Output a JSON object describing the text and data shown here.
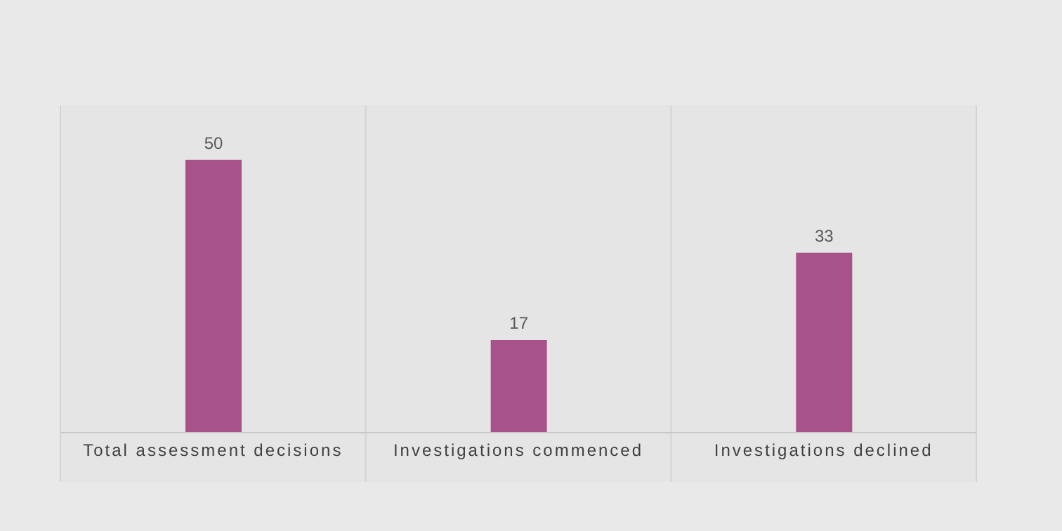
{
  "chart_data": {
    "type": "bar",
    "categories": [
      "Total assessment decisions",
      "Investigations commenced",
      "Investigations declined"
    ],
    "values": [
      50,
      17,
      33
    ],
    "color": "#a8528a",
    "ylim": [
      0,
      60
    ],
    "data_labels": true
  }
}
